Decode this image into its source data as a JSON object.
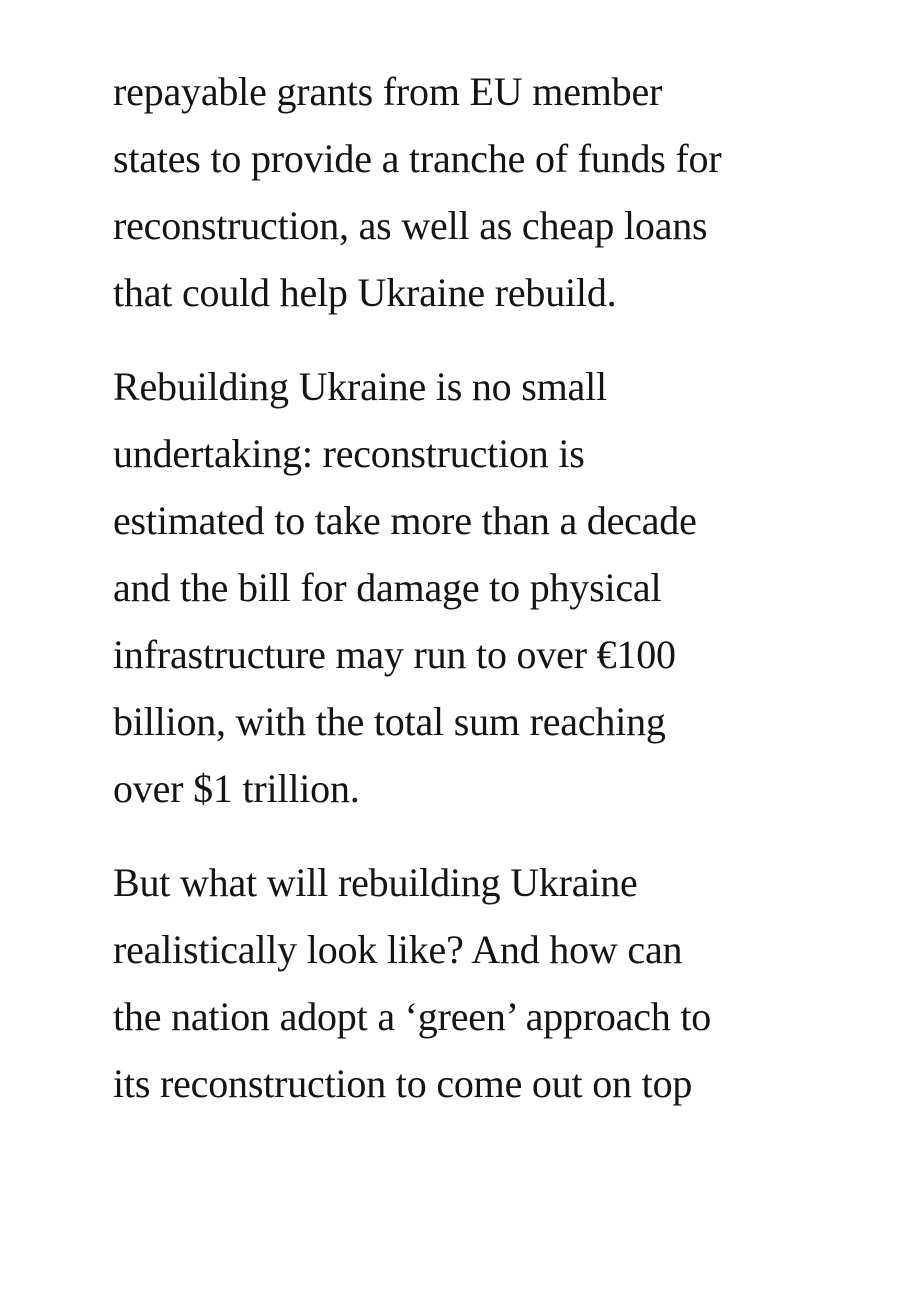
{
  "page": {
    "background_color": "#ffffff",
    "text_color": "#141414"
  },
  "article": {
    "paragraphs": [
      {
        "lines": [
          "repayable grants from EU member",
          "states to provide a tranche of funds for",
          "reconstruction, as well as cheap loans",
          "that could help Ukraine rebuild."
        ]
      },
      {
        "lines": [
          "Rebuilding Ukraine is no small",
          "undertaking: reconstruction is",
          "estimated to take more than a decade",
          "and the bill for damage to physical",
          "infrastructure may run to over €100",
          "billion, with the total sum reaching",
          "over $1 trillion."
        ]
      },
      {
        "lines": [
          "But what will rebuilding Ukraine",
          "realistically look like? And how can",
          "the nation adopt a ‘green’ approach to",
          "its reconstruction to come out on top"
        ]
      }
    ]
  }
}
